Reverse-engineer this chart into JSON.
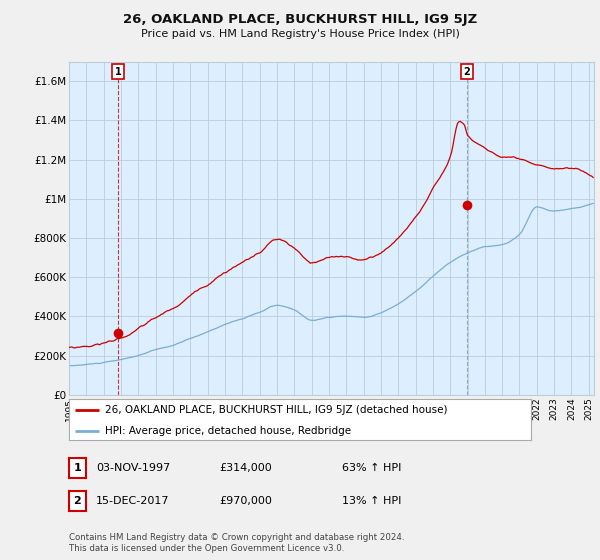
{
  "title": "26, OAKLAND PLACE, BUCKHURST HILL, IG9 5JZ",
  "subtitle": "Price paid vs. HM Land Registry's House Price Index (HPI)",
  "ylim": [
    0,
    1700000
  ],
  "yticks": [
    0,
    200000,
    400000,
    600000,
    800000,
    1000000,
    1200000,
    1400000,
    1600000
  ],
  "ytick_labels": [
    "£0",
    "£200K",
    "£400K",
    "£600K",
    "£800K",
    "£1M",
    "£1.2M",
    "£1.4M",
    "£1.6M"
  ],
  "legend_line1": "26, OAKLAND PLACE, BUCKHURST HILL, IG9 5JZ (detached house)",
  "legend_line2": "HPI: Average price, detached house, Redbridge",
  "annotation1_date": "03-NOV-1997",
  "annotation1_price": "£314,000",
  "annotation1_hpi": "63% ↑ HPI",
  "annotation2_date": "15-DEC-2017",
  "annotation2_price": "£970,000",
  "annotation2_hpi": "13% ↑ HPI",
  "footnote": "Contains HM Land Registry data © Crown copyright and database right 2024.\nThis data is licensed under the Open Government Licence v3.0.",
  "line_color_red": "#cc0000",
  "line_color_blue": "#7aadd4",
  "grid_color": "#bbccdd",
  "bg_color": "#ddeeff",
  "plot_bg_color": "#ddeeff",
  "sale1_x": 1997.83,
  "sale1_y": 314000,
  "sale2_x": 2017.96,
  "sale2_y": 970000,
  "xtick_years": [
    1995,
    1996,
    1997,
    1998,
    1999,
    2000,
    2001,
    2002,
    2003,
    2004,
    2005,
    2006,
    2007,
    2008,
    2009,
    2010,
    2011,
    2012,
    2013,
    2014,
    2015,
    2016,
    2017,
    2018,
    2019,
    2020,
    2021,
    2022,
    2023,
    2024,
    2025
  ],
  "xlim_min": 1995,
  "xlim_max": 2025.3
}
